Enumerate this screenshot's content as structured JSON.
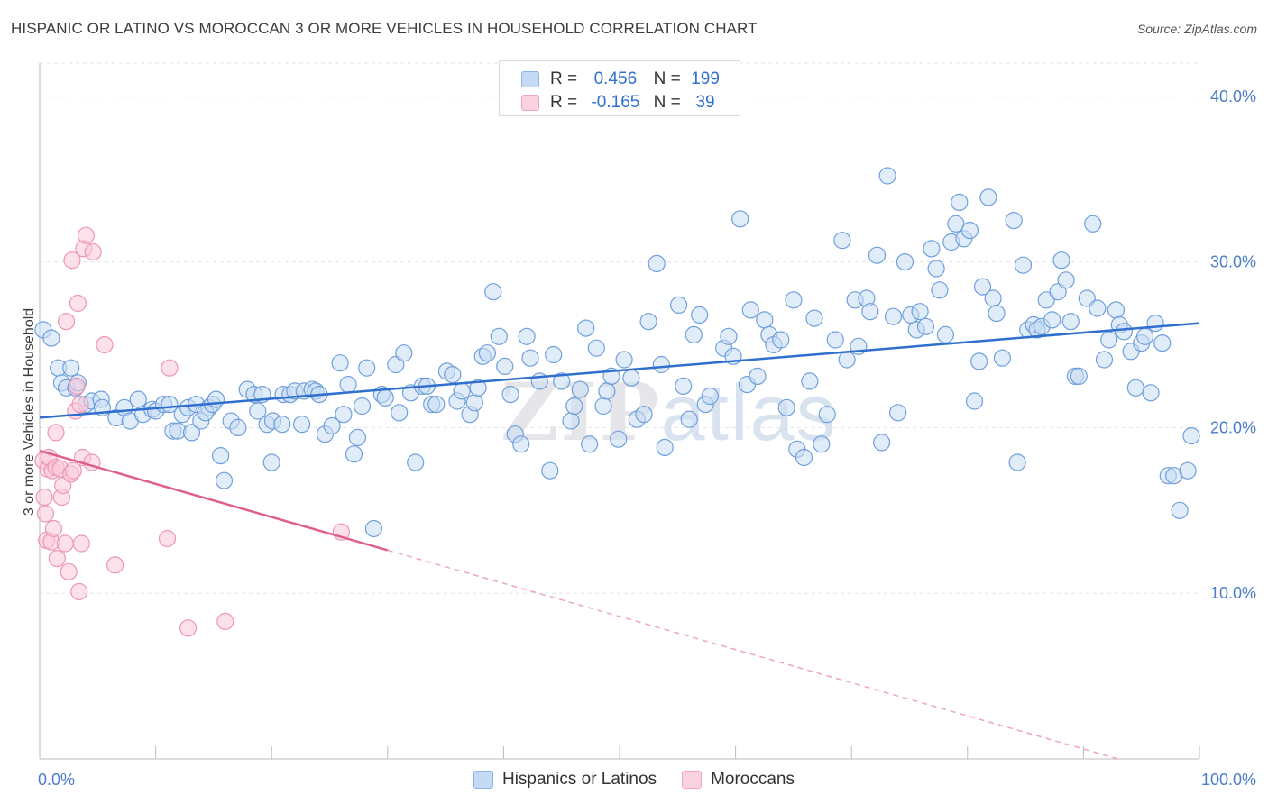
{
  "header": {
    "title": "HISPANIC OR LATINO VS MOROCCAN 3 OR MORE VEHICLES IN HOUSEHOLD CORRELATION CHART",
    "source": "Source: ZipAtlas.com"
  },
  "watermark": {
    "part1": "ZIP",
    "part2": "atlas"
  },
  "legend_top": {
    "rows": [
      {
        "r_label": "R =",
        "r_value": "0.456",
        "n_label": "N =",
        "n_value": "199",
        "color": "#8ab4e8",
        "fill": "#c5daf5"
      },
      {
        "r_label": "R =",
        "r_value": "-0.165",
        "n_label": "N =",
        "n_value": "39",
        "color": "#f2a6bd",
        "fill": "#fbd3df"
      }
    ]
  },
  "legend_bottom": [
    {
      "label": "Hispanics or Latinos",
      "color": "#8ab4e8",
      "fill": "#c5daf5"
    },
    {
      "label": "Moroccans",
      "color": "#f2a6bd",
      "fill": "#fbd3df"
    }
  ],
  "chart_data": {
    "type": "scatter",
    "title": "HISPANIC OR LATINO VS MOROCCAN 3 OR MORE VEHICLES IN HOUSEHOLD CORRELATION CHART",
    "ylabel": "3 or more Vehicles in Household",
    "xlim": [
      0,
      100
    ],
    "ylim": [
      0,
      42
    ],
    "x_tick_labels": [
      "0.0%",
      "100.0%"
    ],
    "y_ticks": [
      10,
      20,
      30,
      40
    ],
    "y_tick_labels": [
      "10.0%",
      "20.0%",
      "30.0%",
      "40.0%"
    ],
    "grid": true,
    "legend_position": "top-center",
    "series": [
      {
        "name": "Hispanics or Latinos",
        "color": "#6f9fdc",
        "fill": "#c9dcf4",
        "trend": {
          "x": [
            0,
            100
          ],
          "y": [
            20.6,
            26.3
          ]
        },
        "points": [
          [
            0.3,
            25.9
          ],
          [
            1,
            25.4
          ],
          [
            1.6,
            23.6
          ],
          [
            1.9,
            22.7
          ],
          [
            2.3,
            22.4
          ],
          [
            2.7,
            23.6
          ],
          [
            3.1,
            22.4
          ],
          [
            3.3,
            22.7
          ],
          [
            4,
            21.4
          ],
          [
            4.5,
            21.6
          ],
          [
            5.3,
            21.7
          ],
          [
            5.4,
            21.2
          ],
          [
            6.6,
            20.6
          ],
          [
            7.3,
            21.2
          ],
          [
            7.8,
            20.4
          ],
          [
            8.5,
            21.7
          ],
          [
            8.9,
            20.8
          ],
          [
            9.7,
            21.1
          ],
          [
            10,
            21
          ],
          [
            10.7,
            21.4
          ],
          [
            11.2,
            21.4
          ],
          [
            11.5,
            19.8
          ],
          [
            11.9,
            19.8
          ],
          [
            12.3,
            20.8
          ],
          [
            12.8,
            21.2
          ],
          [
            13.1,
            19.7
          ],
          [
            13.5,
            21.4
          ],
          [
            13.9,
            20.4
          ],
          [
            14.6,
            21.2
          ],
          [
            14.3,
            20.9
          ],
          [
            14.9,
            21.4
          ],
          [
            15.2,
            21.7
          ],
          [
            15.6,
            18.3
          ],
          [
            15.9,
            16.8
          ],
          [
            16.5,
            20.4
          ],
          [
            17.1,
            20
          ],
          [
            17.9,
            22.3
          ],
          [
            18.5,
            22
          ],
          [
            18.8,
            21
          ],
          [
            19.2,
            22
          ],
          [
            19.6,
            20.2
          ],
          [
            20.1,
            20.4
          ],
          [
            20,
            17.9
          ],
          [
            20.9,
            20.2
          ],
          [
            21,
            22
          ],
          [
            21.6,
            22
          ],
          [
            22,
            22.2
          ],
          [
            22.6,
            20.2
          ],
          [
            22.8,
            22.2
          ],
          [
            23.5,
            22.3
          ],
          [
            23.8,
            22.2
          ],
          [
            24.1,
            22
          ],
          [
            24.6,
            19.6
          ],
          [
            25.2,
            20.1
          ],
          [
            25.9,
            23.9
          ],
          [
            26.2,
            20.8
          ],
          [
            26.6,
            22.6
          ],
          [
            27.1,
            18.4
          ],
          [
            27.4,
            19.4
          ],
          [
            27.8,
            21.3
          ],
          [
            28.2,
            23.6
          ],
          [
            28.8,
            13.9
          ],
          [
            29.5,
            22
          ],
          [
            29.8,
            21.8
          ],
          [
            30.7,
            23.8
          ],
          [
            31,
            20.9
          ],
          [
            31.4,
            24.5
          ],
          [
            32,
            22.1
          ],
          [
            32.4,
            17.9
          ],
          [
            33,
            22.5
          ],
          [
            33.4,
            22.5
          ],
          [
            33.8,
            21.4
          ],
          [
            34.2,
            21.4
          ],
          [
            35.1,
            23.4
          ],
          [
            35.6,
            23.2
          ],
          [
            36,
            21.6
          ],
          [
            36.4,
            22.2
          ],
          [
            37.1,
            20.8
          ],
          [
            37.5,
            21.5
          ],
          [
            37.8,
            22.4
          ],
          [
            38.2,
            24.3
          ],
          [
            38.6,
            24.5
          ],
          [
            39.1,
            28.2
          ],
          [
            39.6,
            25.5
          ],
          [
            40.1,
            23.7
          ],
          [
            40.6,
            22
          ],
          [
            41,
            19.6
          ],
          [
            41.5,
            19
          ],
          [
            42,
            25.5
          ],
          [
            42.3,
            24.2
          ],
          [
            43.1,
            22.8
          ],
          [
            44,
            17.4
          ],
          [
            44.3,
            24.4
          ],
          [
            45,
            22.8
          ],
          [
            45.8,
            20.4
          ],
          [
            46.1,
            21.3
          ],
          [
            46.6,
            22.3
          ],
          [
            47.1,
            26
          ],
          [
            47.4,
            19
          ],
          [
            48,
            24.8
          ],
          [
            48.6,
            21.3
          ],
          [
            48.9,
            22.2
          ],
          [
            49.3,
            23.1
          ],
          [
            49.9,
            19.3
          ],
          [
            50.4,
            24.1
          ],
          [
            51,
            23
          ],
          [
            51.5,
            20.5
          ],
          [
            52.1,
            20.8
          ],
          [
            52.5,
            26.4
          ],
          [
            53.2,
            29.9
          ],
          [
            53.6,
            23.8
          ],
          [
            53.9,
            18.8
          ],
          [
            55.1,
            27.4
          ],
          [
            55.5,
            22.5
          ],
          [
            56,
            20.5
          ],
          [
            56.4,
            25.6
          ],
          [
            56.9,
            26.8
          ],
          [
            57.4,
            21.4
          ],
          [
            57.8,
            21.9
          ],
          [
            59,
            24.8
          ],
          [
            59.4,
            25.5
          ],
          [
            59.8,
            24.3
          ],
          [
            60.4,
            32.6
          ],
          [
            61,
            22.6
          ],
          [
            61.3,
            27.1
          ],
          [
            61.9,
            23.1
          ],
          [
            62.5,
            26.5
          ],
          [
            62.9,
            25.6
          ],
          [
            63.3,
            25
          ],
          [
            63.9,
            25.3
          ],
          [
            64.4,
            21.2
          ],
          [
            65,
            27.7
          ],
          [
            65.3,
            18.7
          ],
          [
            65.9,
            18.2
          ],
          [
            66.4,
            22.8
          ],
          [
            66.8,
            26.6
          ],
          [
            67.4,
            19
          ],
          [
            67.9,
            20.8
          ],
          [
            68.6,
            25.3
          ],
          [
            69.2,
            31.3
          ],
          [
            69.6,
            24.1
          ],
          [
            70.3,
            27.7
          ],
          [
            70.6,
            24.9
          ],
          [
            71.3,
            27.8
          ],
          [
            71.6,
            27
          ],
          [
            72.2,
            30.4
          ],
          [
            72.6,
            19.1
          ],
          [
            73.1,
            35.2
          ],
          [
            73.6,
            26.7
          ],
          [
            74,
            20.9
          ],
          [
            74.6,
            30
          ],
          [
            75.1,
            26.8
          ],
          [
            75.6,
            25.9
          ],
          [
            75.9,
            27
          ],
          [
            76.4,
            26.1
          ],
          [
            76.9,
            30.8
          ],
          [
            77.3,
            29.6
          ],
          [
            77.6,
            28.3
          ],
          [
            78.1,
            25.6
          ],
          [
            78.6,
            31.2
          ],
          [
            79,
            32.3
          ],
          [
            79.3,
            33.6
          ],
          [
            79.7,
            31.4
          ],
          [
            80.2,
            31.9
          ],
          [
            80.6,
            21.6
          ],
          [
            81,
            24
          ],
          [
            81.3,
            28.5
          ],
          [
            81.8,
            33.9
          ],
          [
            82.2,
            27.8
          ],
          [
            82.5,
            26.9
          ],
          [
            83,
            24.2
          ],
          [
            84,
            32.5
          ],
          [
            84.3,
            17.9
          ],
          [
            84.8,
            29.8
          ],
          [
            85.2,
            25.9
          ],
          [
            85.7,
            26.2
          ],
          [
            86,
            25.9
          ],
          [
            86.4,
            26.1
          ],
          [
            86.8,
            27.7
          ],
          [
            87.3,
            26.5
          ],
          [
            87.8,
            28.2
          ],
          [
            88.1,
            30.1
          ],
          [
            88.5,
            28.9
          ],
          [
            88.9,
            26.4
          ],
          [
            89.3,
            23.1
          ],
          [
            89.6,
            23.1
          ],
          [
            90.3,
            27.8
          ],
          [
            90.8,
            32.3
          ],
          [
            91.2,
            27.2
          ],
          [
            91.8,
            24.1
          ],
          [
            92.2,
            25.3
          ],
          [
            92.8,
            27.1
          ],
          [
            93.1,
            26.2
          ],
          [
            93.5,
            25.8
          ],
          [
            94.1,
            24.6
          ],
          [
            94.5,
            22.4
          ],
          [
            95,
            25.1
          ],
          [
            95.3,
            25.5
          ],
          [
            95.8,
            22.1
          ],
          [
            96.2,
            26.3
          ],
          [
            96.8,
            25.1
          ],
          [
            97.3,
            17.1
          ],
          [
            97.8,
            17.1
          ],
          [
            98.3,
            15
          ],
          [
            99,
            17.4
          ],
          [
            99.3,
            19.5
          ]
        ]
      },
      {
        "name": "Moroccans",
        "color": "#ee96b2",
        "fill": "#f9c8d8",
        "trend": {
          "x": [
            0,
            30
          ],
          "y": [
            18.6,
            12.6
          ]
        },
        "trend_dashed": {
          "x": [
            30,
            100
          ],
          "y": [
            12.6,
            -1.4
          ]
        },
        "points": [
          [
            0.3,
            18
          ],
          [
            0.4,
            15.8
          ],
          [
            0.5,
            14.8
          ],
          [
            0.6,
            13.2
          ],
          [
            0.7,
            17.5
          ],
          [
            0.8,
            18.2
          ],
          [
            1,
            13.1
          ],
          [
            1.1,
            17.4
          ],
          [
            1.2,
            13.9
          ],
          [
            1.4,
            17.6
          ],
          [
            1.4,
            19.7
          ],
          [
            1.5,
            12.1
          ],
          [
            1.8,
            17.5
          ],
          [
            1.9,
            15.8
          ],
          [
            2,
            16.5
          ],
          [
            2.2,
            13
          ],
          [
            2.3,
            26.4
          ],
          [
            2.5,
            11.3
          ],
          [
            2.7,
            17.2
          ],
          [
            2.8,
            30.1
          ],
          [
            2.9,
            17.4
          ],
          [
            3.1,
            21
          ],
          [
            3.2,
            22.5
          ],
          [
            3.3,
            27.5
          ],
          [
            3.4,
            10.1
          ],
          [
            3.5,
            21.4
          ],
          [
            3.6,
            13
          ],
          [
            3.7,
            18.2
          ],
          [
            3.8,
            30.8
          ],
          [
            4,
            31.6
          ],
          [
            4.5,
            17.9
          ],
          [
            4.6,
            30.6
          ],
          [
            5.6,
            25
          ],
          [
            6.5,
            11.7
          ],
          [
            11,
            13.3
          ],
          [
            11.2,
            23.6
          ],
          [
            12.8,
            7.9
          ],
          [
            16,
            8.3
          ],
          [
            26,
            13.7
          ]
        ]
      }
    ]
  }
}
